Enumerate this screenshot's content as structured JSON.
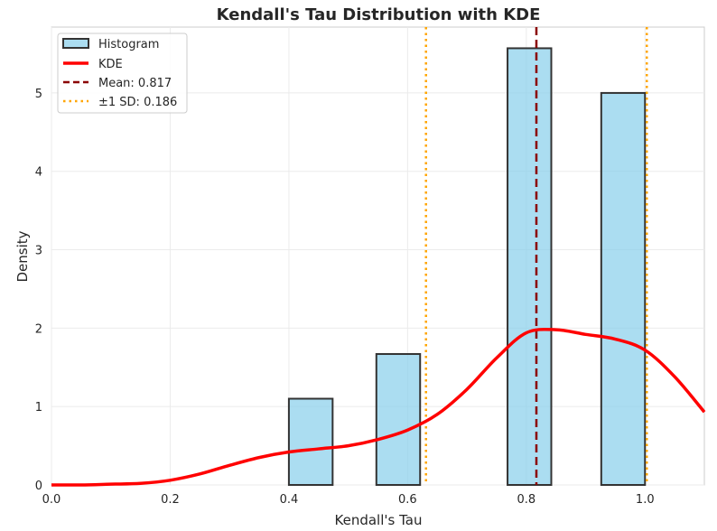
{
  "chart_data": {
    "type": "bar",
    "title": "Kendall's Tau Distribution with KDE",
    "xlabel": "Kendall's Tau",
    "ylabel": "Density",
    "xlim": [
      0.0,
      1.1
    ],
    "ylim": [
      0,
      5.84
    ],
    "grid": true,
    "xticks": [
      0.0,
      0.2,
      0.4,
      0.6,
      0.8,
      1.0
    ],
    "xtick_labels": [
      "0.0",
      "0.2",
      "0.4",
      "0.6",
      "0.8",
      "1.0"
    ],
    "yticks": [
      0,
      1,
      2,
      3,
      4,
      5
    ],
    "ytick_labels": [
      "0",
      "1",
      "2",
      "3",
      "4",
      "5"
    ],
    "legend_position": "top-left",
    "histogram": {
      "name": "Histogram",
      "color": "#87CEEB",
      "edge_color": "#333333",
      "bins": [
        {
          "x0": 0.4,
          "x1": 0.4737,
          "density": 1.1
        },
        {
          "x0": 0.5474,
          "x1": 0.6211,
          "density": 1.67
        },
        {
          "x0": 0.7684,
          "x1": 0.8421,
          "density": 5.57
        },
        {
          "x0": 0.9263,
          "x1": 1.0,
          "density": 5.0
        }
      ]
    },
    "kde": {
      "name": "KDE",
      "color": "#ff0000",
      "x": [
        0.0,
        0.05,
        0.1,
        0.15,
        0.2,
        0.25,
        0.3,
        0.35,
        0.4,
        0.45,
        0.5,
        0.55,
        0.6,
        0.65,
        0.7,
        0.75,
        0.8,
        0.85,
        0.9,
        0.95,
        1.0,
        1.05,
        1.1
      ],
      "y": [
        0.0,
        0.0,
        0.01,
        0.02,
        0.06,
        0.14,
        0.25,
        0.35,
        0.42,
        0.46,
        0.5,
        0.58,
        0.7,
        0.9,
        1.22,
        1.62,
        1.94,
        1.98,
        1.92,
        1.86,
        1.72,
        1.38,
        0.93
      ]
    },
    "mean_line": {
      "name": "Mean: 0.817",
      "value": 0.817,
      "color": "#8b0000",
      "style": "dashed"
    },
    "sd_lines": {
      "name": "±1 SD: 0.186",
      "values": [
        0.631,
        1.003
      ],
      "color": "#ffa500",
      "style": "dotted"
    },
    "legend": [
      {
        "label": "Histogram",
        "kind": "patch"
      },
      {
        "label": "KDE",
        "kind": "line"
      },
      {
        "label": "Mean: 0.817",
        "kind": "dashed"
      },
      {
        "label": "±1 SD: 0.186",
        "kind": "dotted"
      }
    ]
  }
}
